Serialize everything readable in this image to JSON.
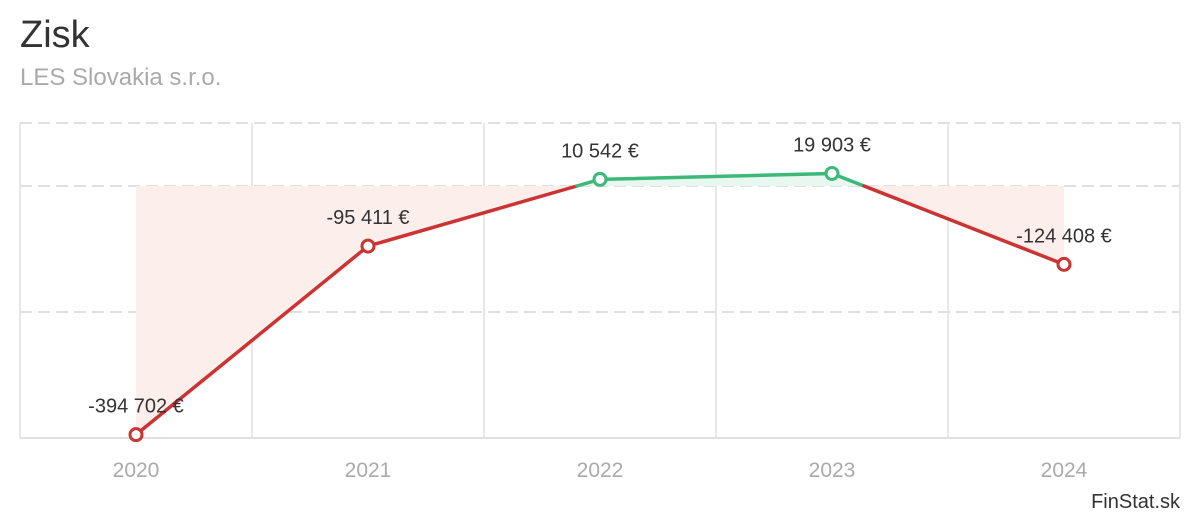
{
  "header": {
    "title": "Zisk",
    "subtitle": "LES Slovakia s.r.o."
  },
  "credit": "FinStat.sk",
  "colors": {
    "negative": "#cc3333",
    "positive": "#3cb878",
    "negative_fill": "#fbeeeb",
    "positive_fill": "#e8f7ef",
    "grid": "#e0e0e0",
    "axis_text": "#aaaaaa",
    "label_text": "#333333"
  },
  "chart_data": {
    "type": "line",
    "title": "Zisk",
    "subtitle": "LES Slovakia s.r.o.",
    "xlabel": "",
    "ylabel": "",
    "categories": [
      "2020",
      "2021",
      "2022",
      "2023",
      "2024"
    ],
    "series": [
      {
        "name": "Zisk",
        "values": [
          -394702,
          -95411,
          10542,
          19903,
          -124408
        ]
      }
    ],
    "data_labels": [
      "-394 702 €",
      "-95 411 €",
      "10 542 €",
      "19 903 €",
      "-124 408 €"
    ],
    "ylim": [
      -400000,
      100000
    ],
    "y_grid_values": [
      100000,
      0,
      -200000
    ],
    "grid": true,
    "legend": "none"
  }
}
